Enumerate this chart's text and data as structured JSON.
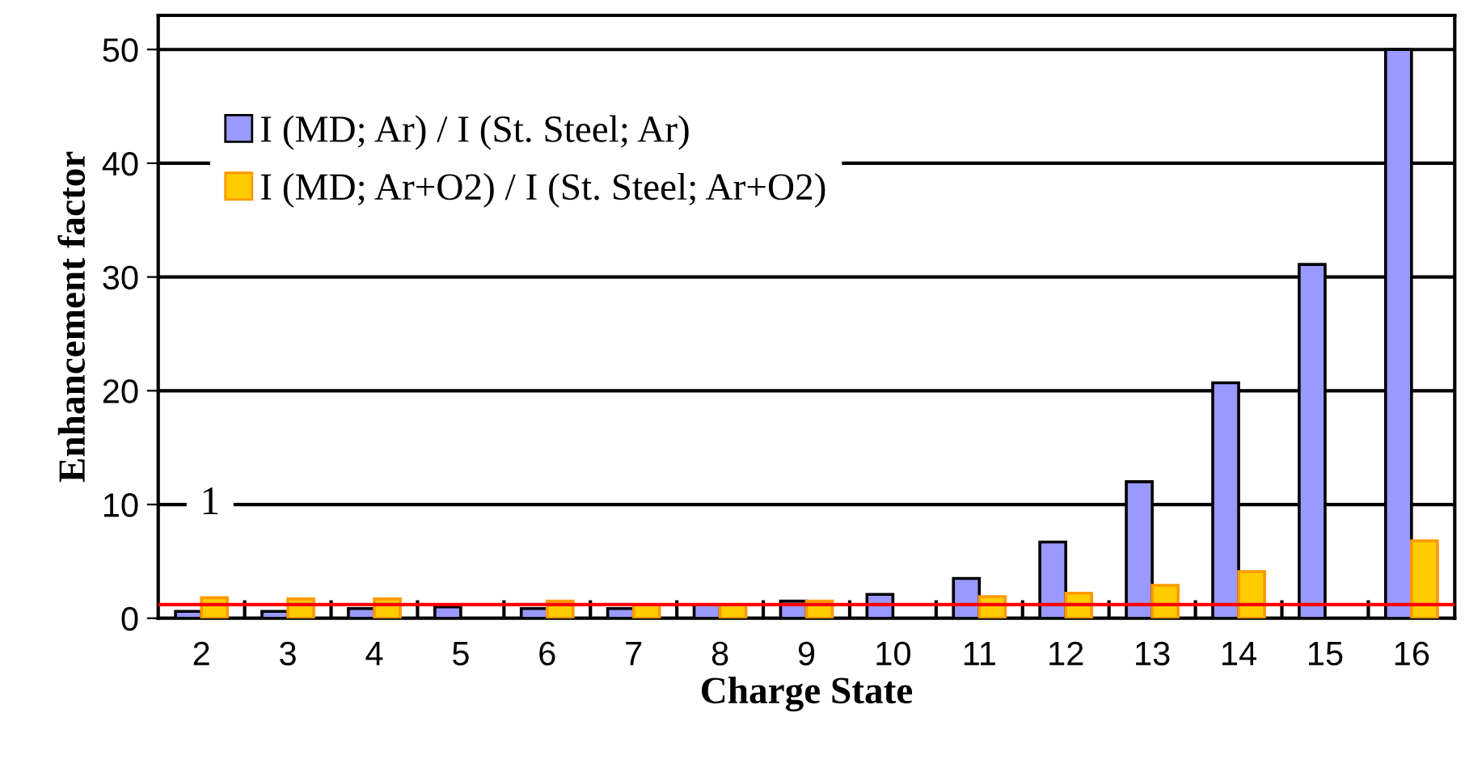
{
  "chart_data": {
    "type": "bar",
    "xlabel": "Charge State",
    "ylabel": "Enhancement factor",
    "categories": [
      "2",
      "3",
      "4",
      "5",
      "6",
      "7",
      "8",
      "9",
      "10",
      "11",
      "12",
      "13",
      "14",
      "15",
      "16"
    ],
    "series": [
      {
        "name": "I (MD; Ar) / I (St. Steel; Ar)",
        "color": "#9999ff",
        "values": [
          0.6,
          0.6,
          0.85,
          1.0,
          0.85,
          0.85,
          1.2,
          1.5,
          2.1,
          3.5,
          6.7,
          12.0,
          20.7,
          31.1,
          50
        ]
      },
      {
        "name": "I (MD; Ar+O2) / I (St. Steel; Ar+O2)",
        "color": "#ffcc00",
        "values": [
          1.8,
          1.7,
          1.7,
          null,
          1.5,
          1.2,
          1.2,
          1.5,
          null,
          1.9,
          2.2,
          2.9,
          4.1,
          null,
          6.8
        ]
      }
    ],
    "ylim": [
      0,
      53
    ],
    "yticks": [
      0,
      10,
      20,
      30,
      40,
      50
    ],
    "grid": "y",
    "legend": "top left",
    "ref_lines": [
      {
        "axis": "y",
        "value": 1.2,
        "label": "1",
        "color": "#ff0000"
      }
    ]
  }
}
